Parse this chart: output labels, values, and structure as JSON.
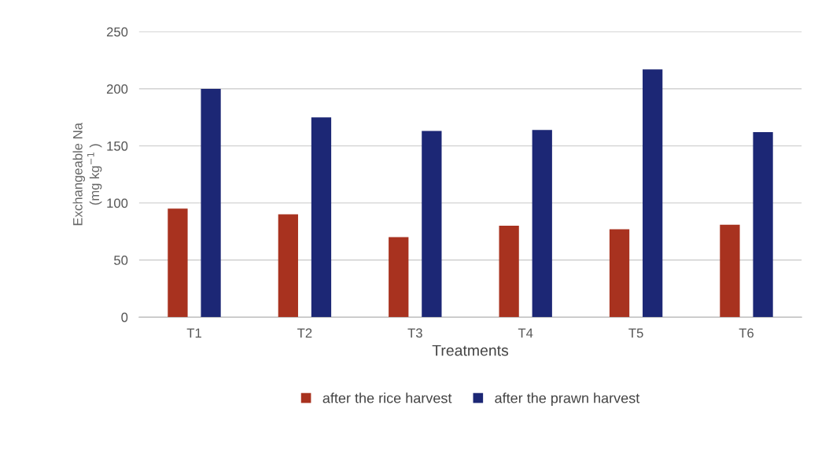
{
  "chart_data": {
    "type": "bar",
    "xlabel": "Treatments",
    "ylabel": "Exchangeable Na\n(mg kg$^{−1}$ )",
    "categories": [
      "T1",
      "T2",
      "T3",
      "T4",
      "T5",
      "T6"
    ],
    "series": [
      {
        "name": "after the rice harvest",
        "color": "#a8321f",
        "values": [
          95,
          90,
          70,
          80,
          77,
          81
        ]
      },
      {
        "name": "after the prawn harvest",
        "color": "#1c2775",
        "values": [
          200,
          175,
          163,
          164,
          217,
          162
        ]
      }
    ],
    "ylim": [
      0,
      250
    ],
    "yticks": [
      0,
      50,
      100,
      150,
      200,
      250
    ],
    "grid": "y",
    "legend": "bottom"
  }
}
